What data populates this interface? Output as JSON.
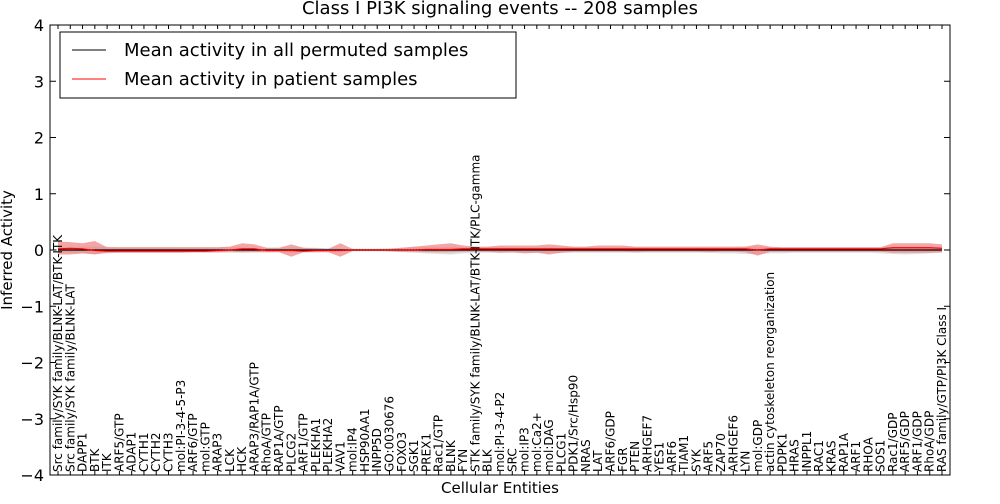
{
  "chart_data": {
    "type": "line",
    "title": "Class I PI3K signaling events -- 208 samples",
    "xlabel": "Cellular Entities",
    "ylabel": "Inferred Activity",
    "ylim": [
      -4,
      4
    ],
    "yticks": [
      -4,
      -3,
      -2,
      -1,
      0,
      1,
      2,
      3,
      4
    ],
    "ytick_labels": [
      "−4",
      "−3",
      "−2",
      "−1",
      "0",
      "1",
      "2",
      "3",
      "4"
    ],
    "grid": false,
    "legend_position": "top-left",
    "categories": [
      "Src family/SYK family/BLNK-LAT/BTK-ITK",
      "Src family/SYK family/BLNK-LAT",
      "DAPP1",
      "BTK",
      "ITK",
      "ARF5/GTP",
      "ADAP1",
      "CYTH1",
      "CYTH2",
      "CYTH3",
      "mol:PI-3-4-5-P3",
      "ARF6/GTP",
      "mol:GTP",
      "ARAP3",
      "LCK",
      "HCK",
      "ARAP3/RAP1A/GTP",
      "RhoA/GTP",
      "RAP1A/GTP",
      "PLCG2",
      "ARF1/GTP",
      "PLEKHA1",
      "PLEKHA2",
      "VAV1",
      "mol:IP4",
      "HSP90AA1",
      "INPP5D",
      "GO:0030676",
      "FOXO3",
      "SGK1",
      "PREX1",
      "Rac1/GTP",
      "BLNK",
      "FYN",
      "STK family/SYK family/BLNK-LAT/BTK-ITK/PLC-gamma",
      "BLK",
      "mol:PI-3-4-P2",
      "SRC",
      "mol:IP3",
      "mol:Ca2+",
      "mol:DAG",
      "PLCG1",
      "PDK1/Src/Hsp90",
      "NRAS",
      "LAT",
      "ARF6/GDP",
      "FGR",
      "PTEN",
      "ARHGEF7",
      "YES1",
      "ARF6",
      "TIAM1",
      "SYK",
      "ARF5",
      "ZAP70",
      "ARHGEF6",
      "LYN",
      "mol:GDP",
      "actin cytoskeleton reorganization",
      "PDPK1",
      "HRAS",
      "INPPL1",
      "RAC1",
      "KRAS",
      "RAP1A",
      "ARF1",
      "RHOA",
      "SOS1",
      "Rac1/GDP",
      "ARF5/GDP",
      "ARF1/GDP",
      "RhoA/GDP",
      "RAS family/GTP/PI3K Class I"
    ],
    "series": [
      {
        "name": "Mean activity in all permuted samples",
        "color": "#000000",
        "band_color": "#c8c8c8",
        "values": [
          0.0,
          0.0,
          0.0,
          0.0,
          0.0,
          0.0,
          0.0,
          0.0,
          0.0,
          0.0,
          0.0,
          0.0,
          0.0,
          0.0,
          0.0,
          0.0,
          0.0,
          0.0,
          0.0,
          0.0,
          0.0,
          0.0,
          0.0,
          0.0,
          0.0,
          0.0,
          0.0,
          0.0,
          0.0,
          0.0,
          0.0,
          0.0,
          0.0,
          0.0,
          0.0,
          0.0,
          0.0,
          0.0,
          0.0,
          0.0,
          0.0,
          0.0,
          0.0,
          0.0,
          0.0,
          0.0,
          0.0,
          0.0,
          0.0,
          0.0,
          0.0,
          0.0,
          0.0,
          0.0,
          0.0,
          0.0,
          0.0,
          0.0,
          0.0,
          0.0,
          0.0,
          0.0,
          0.0,
          0.0,
          0.0,
          0.0,
          0.0,
          0.0,
          0.0,
          0.0,
          0.0,
          0.0,
          0.0
        ],
        "lower": [
          -0.05,
          -0.05,
          -0.06,
          -0.07,
          -0.06,
          -0.05,
          -0.05,
          -0.05,
          -0.05,
          -0.05,
          -0.05,
          -0.05,
          -0.05,
          -0.05,
          -0.05,
          -0.05,
          -0.04,
          -0.04,
          -0.04,
          -0.05,
          -0.04,
          -0.04,
          -0.03,
          -0.03,
          -0.02,
          -0.02,
          -0.02,
          -0.03,
          -0.04,
          -0.05,
          -0.06,
          -0.07,
          -0.08,
          -0.06,
          -0.05,
          -0.05,
          -0.05,
          -0.05,
          -0.05,
          -0.05,
          -0.05,
          -0.05,
          -0.05,
          -0.05,
          -0.05,
          -0.05,
          -0.05,
          -0.05,
          -0.05,
          -0.05,
          -0.05,
          -0.05,
          -0.05,
          -0.05,
          -0.06,
          -0.06,
          -0.07,
          -0.07,
          -0.06,
          -0.06,
          -0.05,
          -0.05,
          -0.05,
          -0.05,
          -0.05,
          -0.05,
          -0.05,
          -0.06,
          -0.07,
          -0.08,
          -0.07,
          -0.06,
          -0.05
        ],
        "upper": [
          0.05,
          0.05,
          0.06,
          0.06,
          0.06,
          0.05,
          0.05,
          0.05,
          0.05,
          0.05,
          0.05,
          0.05,
          0.05,
          0.05,
          0.05,
          0.05,
          0.04,
          0.04,
          0.04,
          0.05,
          0.04,
          0.04,
          0.03,
          0.03,
          0.02,
          0.02,
          0.02,
          0.03,
          0.04,
          0.05,
          0.05,
          0.05,
          0.06,
          0.05,
          0.05,
          0.05,
          0.05,
          0.05,
          0.05,
          0.05,
          0.05,
          0.05,
          0.05,
          0.05,
          0.05,
          0.05,
          0.05,
          0.05,
          0.05,
          0.05,
          0.05,
          0.05,
          0.05,
          0.05,
          0.05,
          0.05,
          0.06,
          0.06,
          0.05,
          0.05,
          0.05,
          0.05,
          0.05,
          0.05,
          0.05,
          0.05,
          0.05,
          0.05,
          0.06,
          0.06,
          0.06,
          0.05,
          0.05
        ]
      },
      {
        "name": "Mean activity in patient samples",
        "color": "#ff0000",
        "band_color": "#f08080",
        "values": [
          0.02,
          0.03,
          0.02,
          -0.01,
          -0.02,
          -0.02,
          -0.02,
          -0.02,
          -0.02,
          -0.02,
          -0.02,
          -0.02,
          -0.02,
          -0.01,
          0.0,
          0.02,
          0.02,
          -0.01,
          -0.01,
          -0.01,
          -0.02,
          -0.01,
          -0.01,
          -0.01,
          0.0,
          0.0,
          0.0,
          0.0,
          0.0,
          0.0,
          0.01,
          0.01,
          0.01,
          0.02,
          0.02,
          0.02,
          0.02,
          0.02,
          0.02,
          0.02,
          0.02,
          0.02,
          0.02,
          0.02,
          0.02,
          0.02,
          0.02,
          0.02,
          0.02,
          0.02,
          0.02,
          0.02,
          0.02,
          0.02,
          0.02,
          0.02,
          0.02,
          0.0,
          0.02,
          0.02,
          0.02,
          0.02,
          0.02,
          0.02,
          0.02,
          0.02,
          0.02,
          0.02,
          0.04,
          0.04,
          0.04,
          0.04,
          0.03
        ],
        "lower": [
          -0.08,
          -0.08,
          -0.06,
          -0.08,
          -0.05,
          -0.05,
          -0.05,
          -0.05,
          -0.05,
          -0.05,
          -0.05,
          -0.04,
          -0.04,
          -0.04,
          -0.03,
          -0.04,
          -0.04,
          -0.04,
          -0.04,
          -0.12,
          -0.04,
          -0.04,
          -0.04,
          -0.12,
          -0.02,
          -0.02,
          -0.02,
          -0.02,
          -0.03,
          -0.03,
          -0.04,
          -0.04,
          -0.04,
          -0.03,
          -0.03,
          -0.03,
          -0.05,
          -0.04,
          -0.06,
          -0.05,
          -0.08,
          -0.05,
          -0.03,
          -0.03,
          -0.03,
          -0.03,
          -0.03,
          -0.04,
          -0.03,
          -0.03,
          -0.03,
          -0.03,
          -0.03,
          -0.04,
          -0.03,
          -0.03,
          -0.04,
          -0.1,
          -0.03,
          -0.03,
          -0.03,
          -0.03,
          -0.03,
          -0.03,
          -0.03,
          -0.03,
          -0.03,
          -0.03,
          -0.05,
          -0.05,
          -0.05,
          -0.05,
          -0.04
        ],
        "upper": [
          0.15,
          0.14,
          0.12,
          0.16,
          0.05,
          0.05,
          0.05,
          0.05,
          0.05,
          0.05,
          0.05,
          0.05,
          0.05,
          0.05,
          0.06,
          0.12,
          0.1,
          0.04,
          0.04,
          0.1,
          0.04,
          0.03,
          0.02,
          0.12,
          0.02,
          0.02,
          0.02,
          0.02,
          0.04,
          0.06,
          0.08,
          0.1,
          0.12,
          0.08,
          0.06,
          0.06,
          0.08,
          0.08,
          0.08,
          0.08,
          0.1,
          0.08,
          0.06,
          0.06,
          0.08,
          0.08,
          0.08,
          0.06,
          0.06,
          0.06,
          0.06,
          0.06,
          0.06,
          0.06,
          0.06,
          0.06,
          0.06,
          0.1,
          0.06,
          0.05,
          0.05,
          0.05,
          0.05,
          0.05,
          0.05,
          0.05,
          0.05,
          0.05,
          0.12,
          0.12,
          0.12,
          0.12,
          0.1
        ]
      }
    ]
  }
}
